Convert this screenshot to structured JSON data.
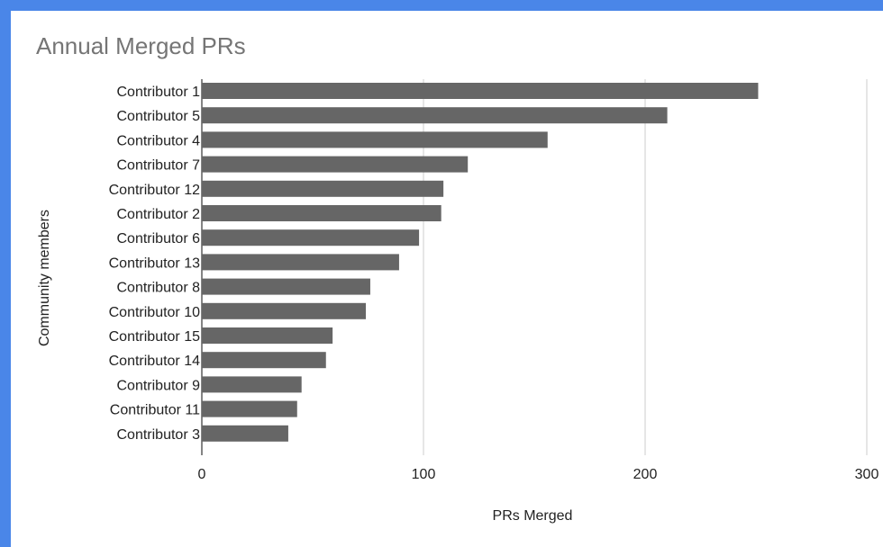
{
  "chart_data": {
    "type": "bar",
    "orientation": "horizontal",
    "title": "Annual Merged PRs",
    "xlabel": "PRs Merged",
    "ylabel": "Community members",
    "categories": [
      "Contributor 1",
      "Contributor 5",
      "Contributor 4",
      "Contributor 7",
      "Contributor 12",
      "Contributor 2",
      "Contributor 6",
      "Contributor 13",
      "Contributor 8",
      "Contributor 10",
      "Contributor 15",
      "Contributor 14",
      "Contributor 9",
      "Contributor 11",
      "Contributor 3"
    ],
    "values": [
      251,
      210,
      156,
      120,
      109,
      108,
      98,
      89,
      76,
      74,
      59,
      56,
      45,
      43,
      39
    ],
    "xlim": [
      0,
      300
    ],
    "xticks": [
      0,
      100,
      200,
      300
    ],
    "grid": true,
    "legend": "none"
  },
  "colors": {
    "bar": "#666666",
    "grid": "#cccccc",
    "frame": "#4a86e8",
    "title": "#757575"
  }
}
